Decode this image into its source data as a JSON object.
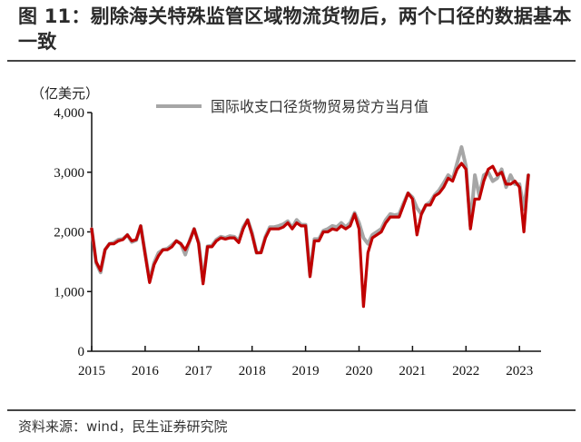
{
  "title": "图 11：剔除海关特殊监管区域物流货物后，两个口径的数据基本一致",
  "source": "资料来源：wind，民生证券研究院",
  "chart_data": {
    "type": "line",
    "title": "图 11：剔除海关特殊监管区域物流货物后，两个口径的数据基本一致",
    "ylabel": "（亿美元）",
    "xlabel": "",
    "ylim": [
      0,
      4000
    ],
    "yticks": [
      0,
      1000,
      2000,
      3000,
      4000
    ],
    "ytick_labels": [
      "0",
      "1,000",
      "2,000",
      "3,000",
      "4,000"
    ],
    "xtick_labels": [
      "2015",
      "2016",
      "2017",
      "2018",
      "2019",
      "2020",
      "2021",
      "2022",
      "2023"
    ],
    "x_start": "2015-01",
    "x_frequency": "monthly",
    "grid": false,
    "legend_position": "top",
    "colors": {
      "series_gray": "#a6a6a6",
      "series_red": "#c00000"
    },
    "series": [
      {
        "name": "国际收支口径货物贸易贷方当月值",
        "color": "#a6a6a6",
        "values": [
          2050,
          1480,
          1320,
          1700,
          1800,
          1820,
          1870,
          1880,
          1950,
          1830,
          1860,
          2100,
          1640,
          1180,
          1480,
          1650,
          1700,
          1720,
          1780,
          1850,
          1800,
          1620,
          1860,
          2050,
          1820,
          1170,
          1760,
          1770,
          1870,
          1920,
          1900,
          1930,
          1920,
          1850,
          2080,
          2200,
          1980,
          1650,
          1660,
          1920,
          2080,
          2080,
          2100,
          2130,
          2180,
          2070,
          2200,
          2120,
          2120,
          1280,
          1880,
          1880,
          2020,
          2050,
          2100,
          2080,
          2150,
          2080,
          2150,
          2320,
          2150,
          1900,
          1800,
          1950,
          2000,
          2050,
          2200,
          2300,
          2280,
          2300,
          2480,
          2650,
          2580,
          2400,
          2300,
          2450,
          2500,
          2620,
          2700,
          2820,
          2950,
          2880,
          3150,
          3420,
          3100,
          2100,
          2950,
          2600,
          2950,
          3000,
          2850,
          2900,
          3050,
          2750,
          2950,
          2800,
          2800,
          2380,
          2950
        ]
      },
      {
        "name": "",
        "color": "#c00000",
        "values": [
          2050,
          1500,
          1350,
          1700,
          1800,
          1800,
          1850,
          1870,
          1950,
          1850,
          1870,
          2100,
          1620,
          1150,
          1450,
          1600,
          1700,
          1700,
          1750,
          1850,
          1800,
          1700,
          1850,
          2050,
          1800,
          1130,
          1750,
          1750,
          1850,
          1900,
          1880,
          1900,
          1900,
          1820,
          2050,
          2200,
          1950,
          1650,
          1650,
          1900,
          2050,
          2050,
          2050,
          2080,
          2150,
          2050,
          2150,
          2100,
          2100,
          1250,
          1850,
          1850,
          2000,
          2000,
          2050,
          2030,
          2100,
          2050,
          2100,
          2300,
          2050,
          750,
          1650,
          1900,
          1950,
          2000,
          2150,
          2250,
          2250,
          2250,
          2450,
          2650,
          2550,
          1950,
          2300,
          2450,
          2450,
          2600,
          2650,
          2750,
          2900,
          2850,
          3050,
          3150,
          3050,
          2050,
          2550,
          2550,
          2850,
          3050,
          3100,
          2950,
          3000,
          2800,
          2800,
          2850,
          2750,
          2000,
          2950
        ]
      }
    ]
  }
}
